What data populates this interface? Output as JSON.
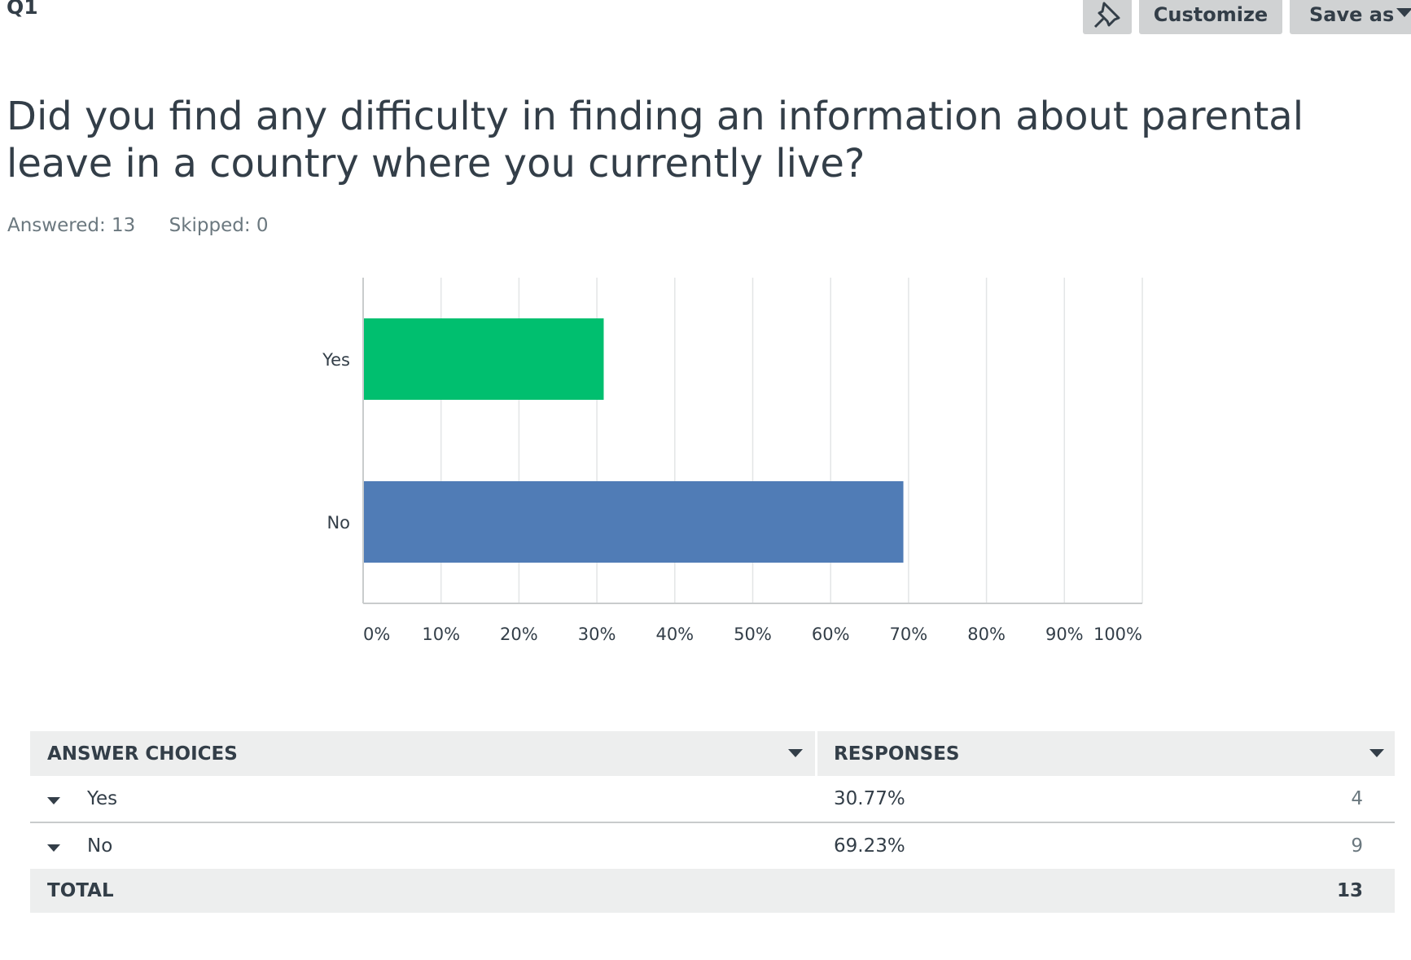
{
  "header": {
    "question_number": "Q1",
    "customize_label": "Customize",
    "save_as_label": "Save as"
  },
  "question": {
    "text": "Did you find any difficulty in finding an information about parental leave in a country where you currently live?",
    "answered_label": "Answered: 13",
    "skipped_label": "Skipped: 0"
  },
  "chart_data": {
    "type": "bar",
    "orientation": "horizontal",
    "categories": [
      "Yes",
      "No"
    ],
    "values": [
      30.77,
      69.23
    ],
    "colors": [
      "#00bf6f",
      "#507cb6"
    ],
    "xlim": [
      0,
      100
    ],
    "x_ticks": [
      "0%",
      "10%",
      "20%",
      "30%",
      "40%",
      "50%",
      "60%",
      "70%",
      "80%",
      "90%",
      "100%"
    ],
    "grid": true,
    "title": "",
    "xlabel": "",
    "ylabel": ""
  },
  "table": {
    "columns": [
      "ANSWER CHOICES",
      "RESPONSES"
    ],
    "rows": [
      {
        "choice": "Yes",
        "percent": "30.77%",
        "count": "4"
      },
      {
        "choice": "No",
        "percent": "69.23%",
        "count": "9"
      }
    ],
    "total_label": "TOTAL",
    "total_value": "13"
  }
}
